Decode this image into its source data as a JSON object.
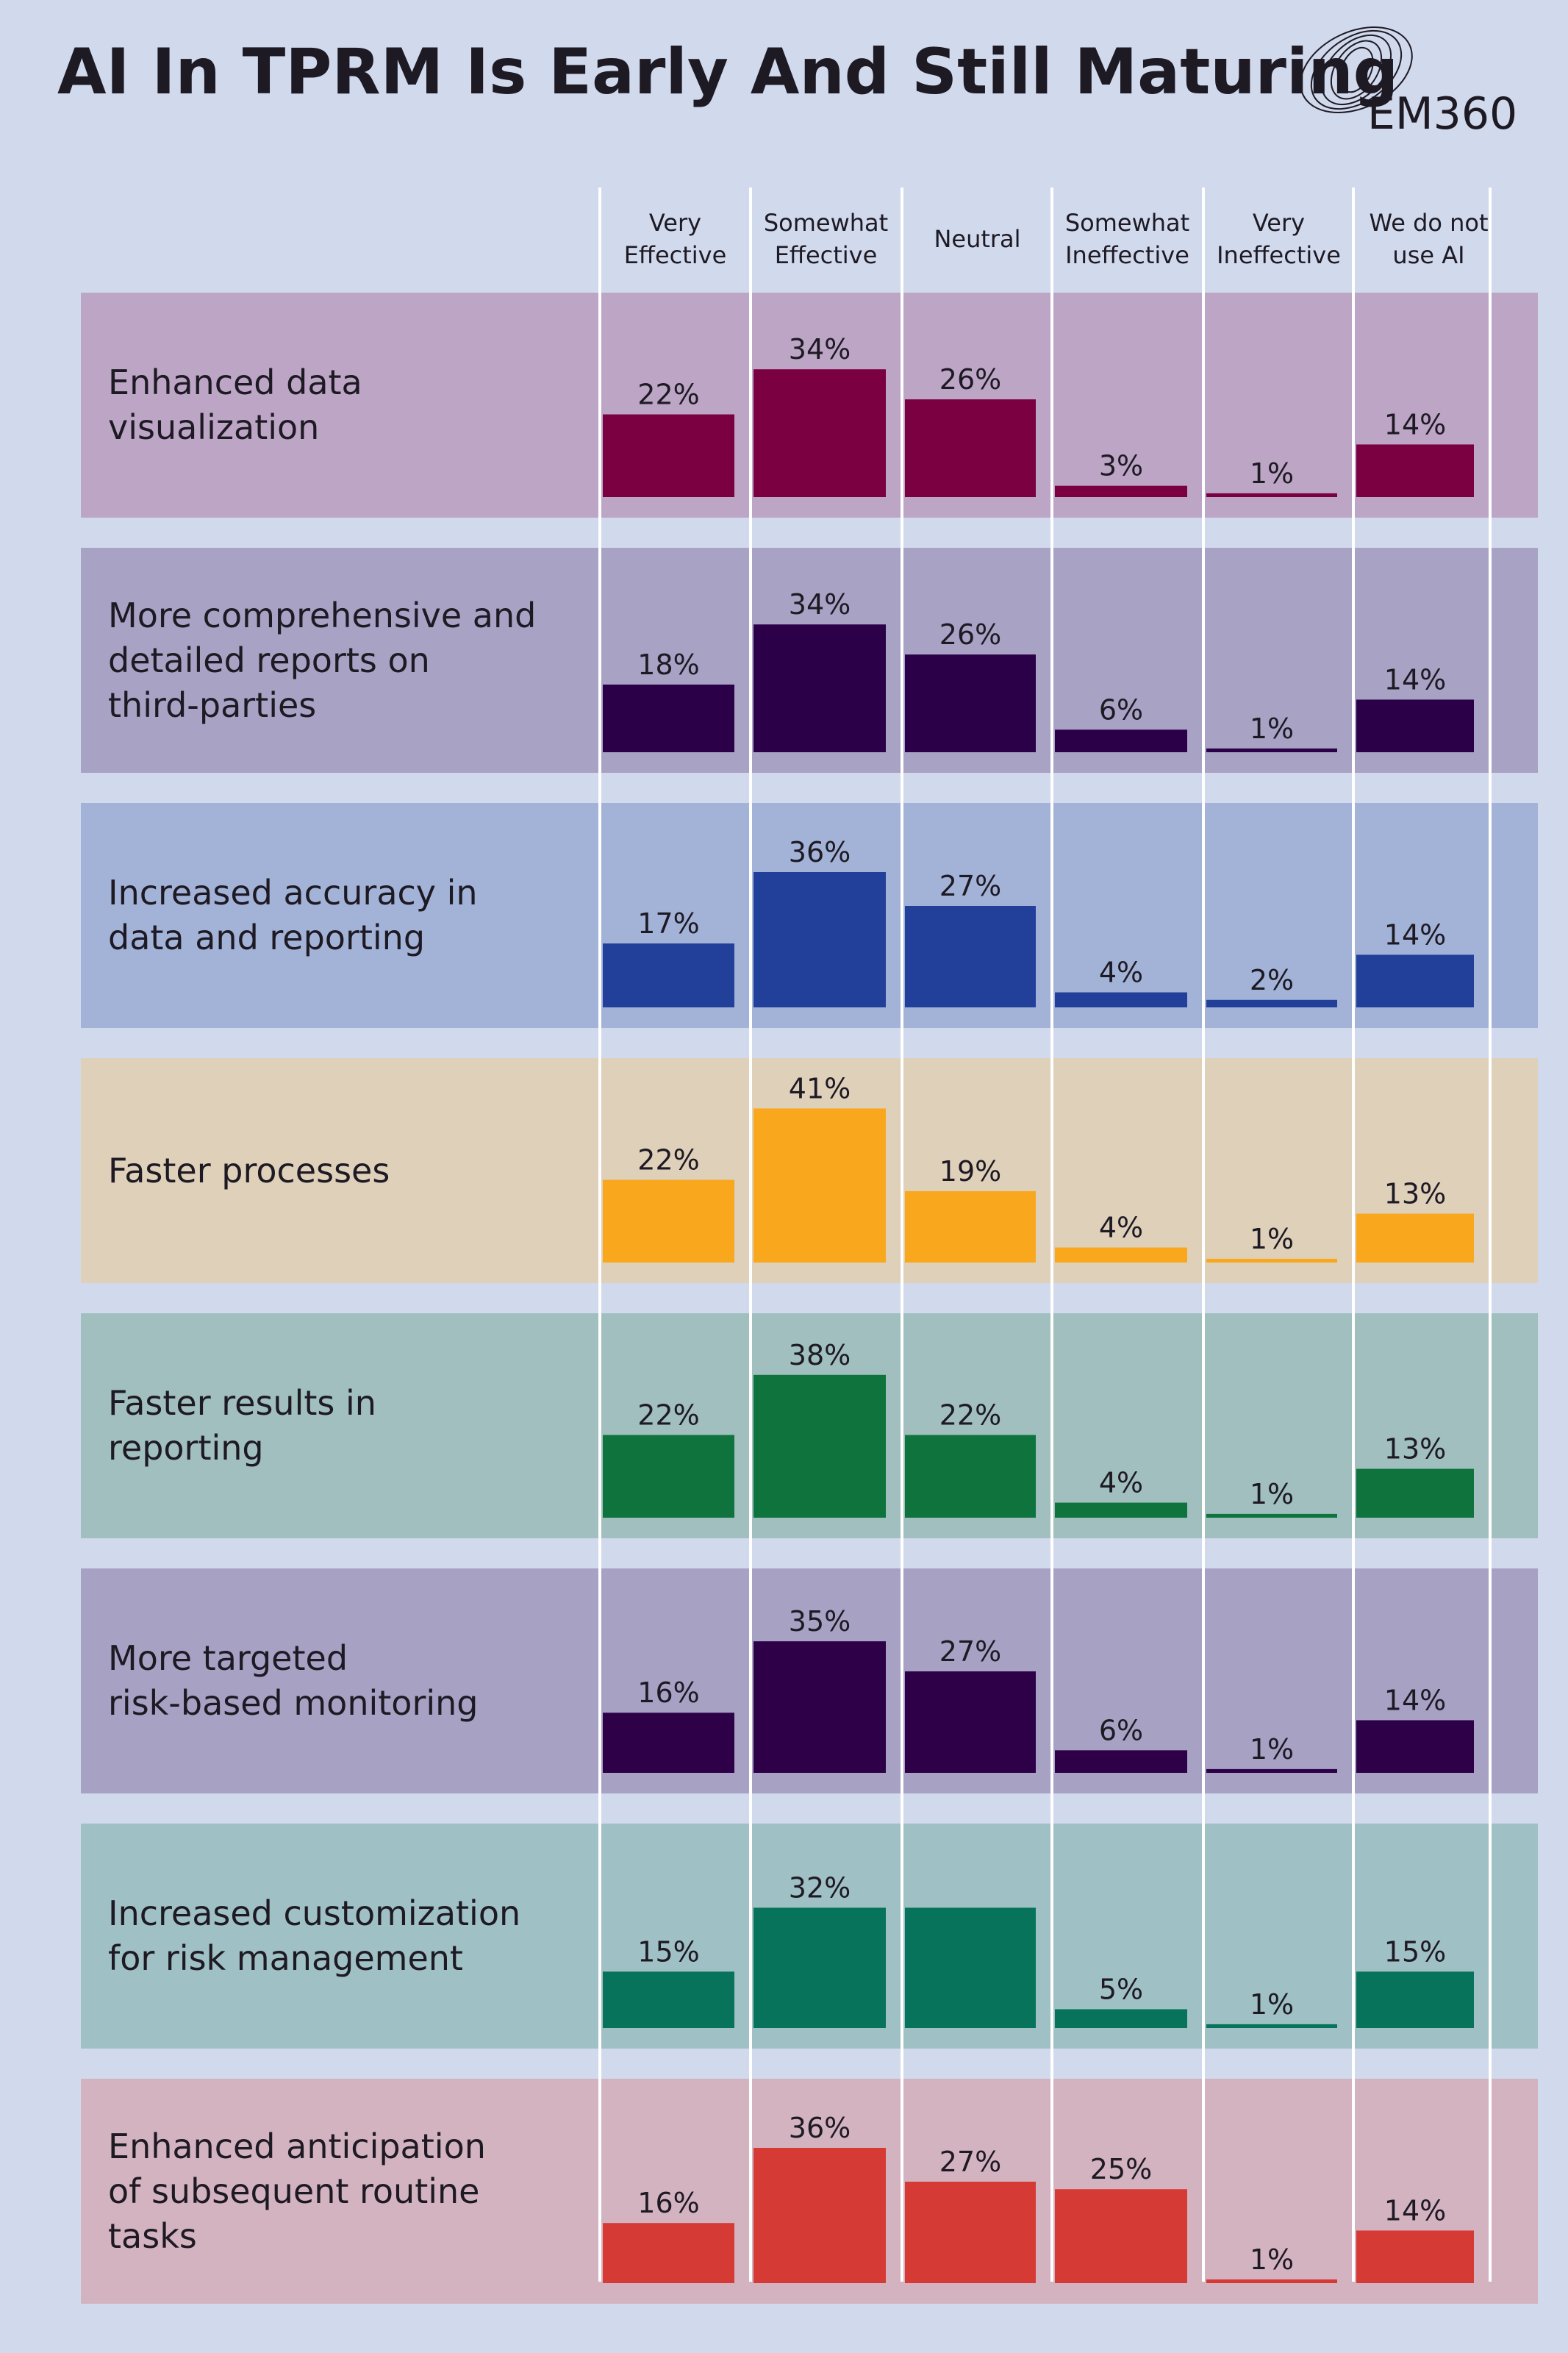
{
  "chart_data": {
    "type": "bar",
    "title": "AI In TPRM Is Early And Still Maturing",
    "logo_text": "EM360",
    "categories": [
      "Very\nEffective",
      "Somewhat\nEffective",
      "Neutral",
      "Somewhat\nIneffective",
      "Very\nIneffective",
      "We do not\nuse AI"
    ],
    "ylim": [
      0,
      45
    ],
    "series": [
      {
        "name": "Enhanced data\nvisualization",
        "color": "#7a0042",
        "background": "#bda5c6",
        "values": [
          22,
          34,
          26,
          3,
          1,
          14
        ],
        "value_labels": [
          "22%",
          "34%",
          "26%",
          "3%",
          "1%",
          "14%"
        ]
      },
      {
        "name": "More comprehensive and\ndetailed reports on\nthird-parties",
        "color": "#2c0049",
        "background": "#a8a2c4",
        "values": [
          18,
          34,
          26,
          6,
          1,
          14
        ],
        "value_labels": [
          "18%",
          "34%",
          "26%",
          "6%",
          "1%",
          "14%"
        ]
      },
      {
        "name": "Increased accuracy in\ndata and reporting",
        "color": "#22409a",
        "background": "#a3b3d8",
        "values": [
          17,
          36,
          27,
          4,
          2,
          14
        ],
        "value_labels": [
          "17%",
          "36%",
          "27%",
          "4%",
          "2%",
          "14%"
        ]
      },
      {
        "name": "Faster processes",
        "color": "#f9a81e",
        "background": "#dfd0ba",
        "values": [
          22,
          41,
          19,
          4,
          1,
          13
        ],
        "value_labels": [
          "22%",
          "41%",
          "19%",
          "4%",
          "1%",
          "13%"
        ]
      },
      {
        "name": "Faster results in\nreporting",
        "color": "#0e733c",
        "background": "#a0bfbe",
        "values": [
          22,
          38,
          22,
          4,
          1,
          13
        ],
        "value_labels": [
          "22%",
          "38%",
          "22%",
          "4%",
          "1%",
          "13%"
        ]
      },
      {
        "name": "More targeted\nrisk-based monitoring",
        "color": "#2d0048",
        "background": "#a7a1c4",
        "values": [
          16,
          35,
          27,
          6,
          1,
          14
        ],
        "value_labels": [
          "16%",
          "35%",
          "27%",
          "6%",
          "1%",
          "14%"
        ]
      },
      {
        "name": "Increased customization\nfor risk management",
        "color": "#06735a",
        "background": "#9fc0c4",
        "values": [
          15,
          32,
          32,
          5,
          1,
          15
        ],
        "value_labels": [
          "15%",
          "32%",
          null,
          "5%",
          "1%",
          "15%"
        ]
      },
      {
        "name": "Enhanced anticipation\nof subsequent routine\ntasks",
        "color": "#d63a35",
        "background": "#d4b3c1",
        "values": [
          16,
          36,
          27,
          25,
          1,
          14
        ],
        "value_labels": [
          "16%",
          "36%",
          "27%",
          "25%",
          "1%",
          "14%"
        ]
      }
    ]
  }
}
